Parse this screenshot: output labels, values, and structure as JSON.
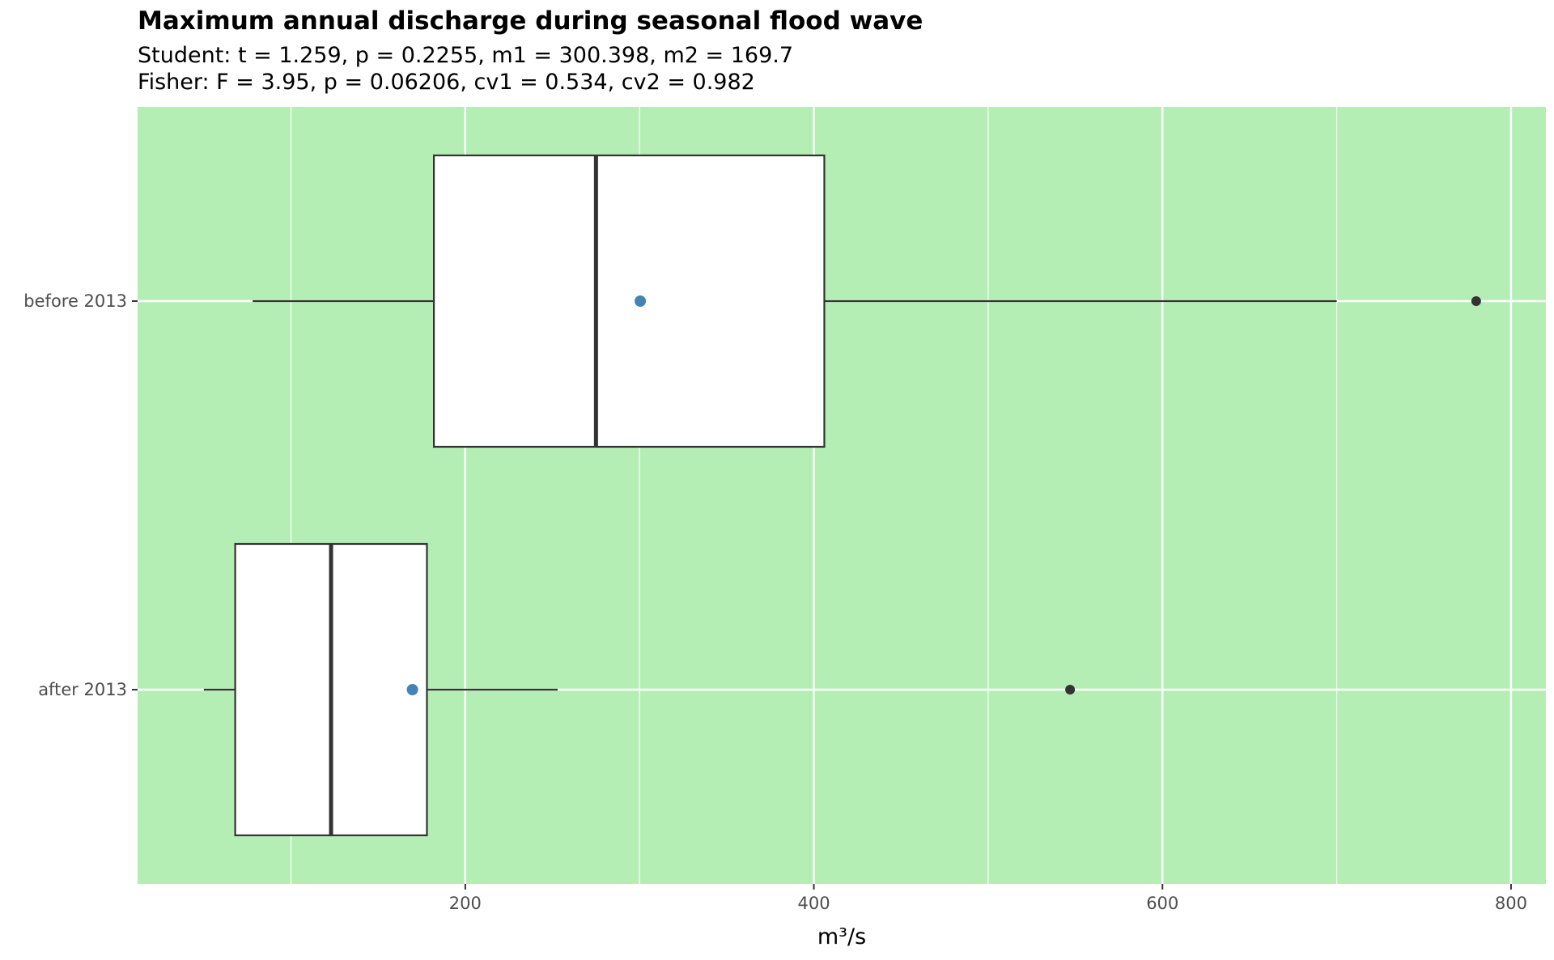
{
  "chart_data": {
    "type": "boxplot",
    "orientation": "horizontal",
    "title": "Maximum annual discharge during seasonal flood wave",
    "subtitle_lines": [
      "Student: t = 1.259, p = 0.2255, m1 = 300.398, m2 = 169.7",
      "Fisher: F = 3.95, p = 0.06206, cv1 = 0.534, cv2 = 0.982"
    ],
    "xlabel": "m³/s",
    "ylabel": "",
    "xlim": [
      12,
      820
    ],
    "x_ticks": [
      200,
      400,
      600,
      800
    ],
    "x_minor": [
      100,
      300,
      500,
      700
    ],
    "categories": [
      "before 2013",
      "after 2013"
    ],
    "boxes": [
      {
        "category": "before 2013",
        "whisker_low": 78,
        "q1": 182,
        "median": 275,
        "q3": 406,
        "whisker_high": 700,
        "mean": 300.398,
        "outliers": [
          780
        ]
      },
      {
        "category": "after 2013",
        "whisker_low": 50,
        "q1": 68,
        "median": 123,
        "q3": 178,
        "whisker_high": 253,
        "mean": 169.7,
        "outliers": [
          547
        ]
      }
    ],
    "grid": true,
    "colors": {
      "panel": "#b5eeb5",
      "grid": "#ffffff",
      "box_fill": "#ffffff",
      "box_line": "#333333",
      "mean_point": "#4682b4",
      "outlier": "#333333"
    }
  }
}
